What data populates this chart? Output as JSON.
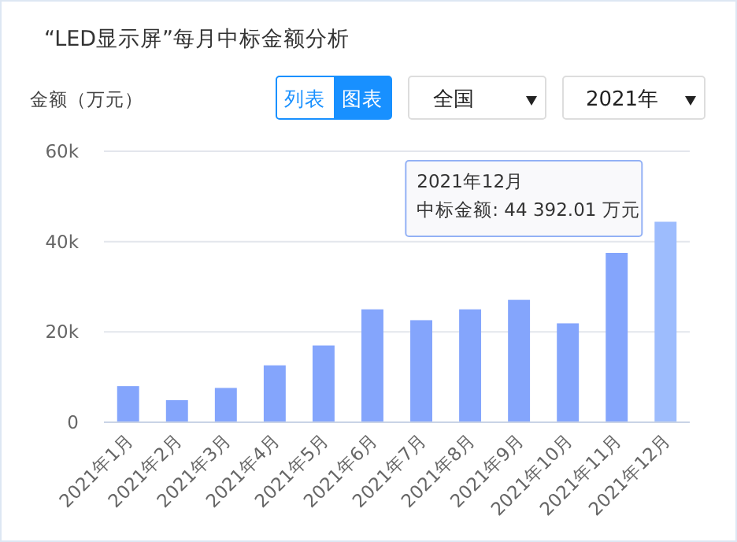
{
  "chart_data": {
    "type": "bar",
    "title": "“LED显示屏”每月中标金额分析",
    "ylabel": "金额（万元）",
    "categories": [
      "2021年1月",
      "2021年2月",
      "2021年3月",
      "2021年4月",
      "2021年5月",
      "2021年6月",
      "2021年7月",
      "2021年8月",
      "2021年9月",
      "2021年10月",
      "2021年11月",
      "2021年12月"
    ],
    "values": [
      8000,
      4900,
      7600,
      12600,
      17000,
      25000,
      22600,
      25000,
      27100,
      21900,
      37500,
      44392.01
    ],
    "colors": [
      "#84a5fc",
      "#84a5fc",
      "#84a5fc",
      "#84a5fc",
      "#84a5fc",
      "#84a5fc",
      "#84a5fc",
      "#84a5fc",
      "#84a5fc",
      "#84a5fc",
      "#84a5fc",
      "#9dbcfd"
    ],
    "ylim": [
      0,
      60000
    ],
    "yticks": [
      {
        "value": 0,
        "label": "0"
      },
      {
        "value": 20000,
        "label": "20k"
      },
      {
        "value": 40000,
        "label": "40k"
      },
      {
        "value": 60000,
        "label": "60k"
      }
    ],
    "grid": "y",
    "annotations": [
      "列表",
      "图表",
      "全国",
      "2021年",
      "2021年12月",
      "中标金额: 44 392.01 万元"
    ]
  }
}
